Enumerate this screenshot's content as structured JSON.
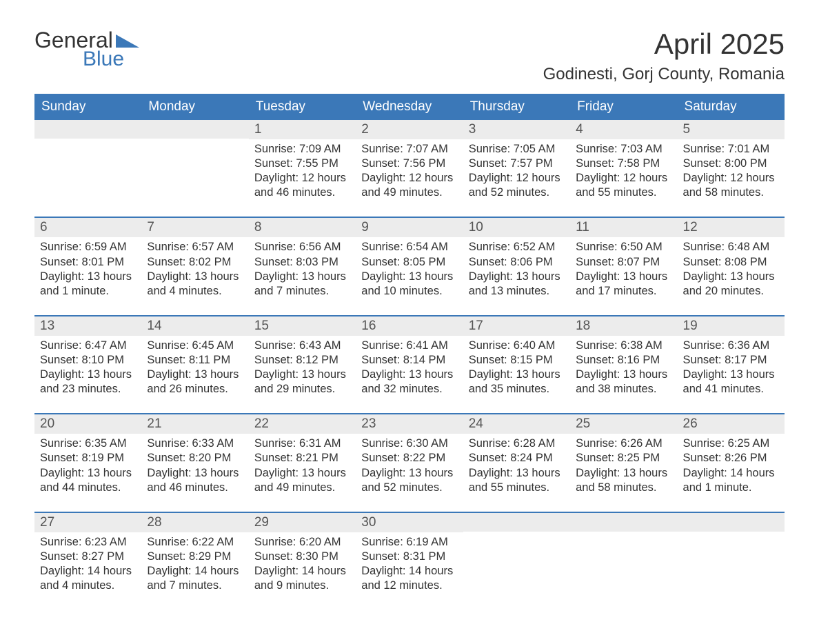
{
  "logo": {
    "text1": "General",
    "text2": "Blue",
    "tri_color": "#3b78b8"
  },
  "title": "April 2025",
  "location": "Godinesti, Gorj County, Romania",
  "colors": {
    "header_bg": "#3b78b8",
    "header_text": "#ffffff",
    "daynum_bg": "#ececec",
    "text": "#333333",
    "week_border": "#3b78b8",
    "page_bg": "#ffffff"
  },
  "day_headers": [
    "Sunday",
    "Monday",
    "Tuesday",
    "Wednesday",
    "Thursday",
    "Friday",
    "Saturday"
  ],
  "weeks": [
    [
      {
        "n": "",
        "sr": "",
        "ss": "",
        "dl": ""
      },
      {
        "n": "",
        "sr": "",
        "ss": "",
        "dl": ""
      },
      {
        "n": "1",
        "sr": "7:09 AM",
        "ss": "7:55 PM",
        "dl": "12 hours and 46 minutes."
      },
      {
        "n": "2",
        "sr": "7:07 AM",
        "ss": "7:56 PM",
        "dl": "12 hours and 49 minutes."
      },
      {
        "n": "3",
        "sr": "7:05 AM",
        "ss": "7:57 PM",
        "dl": "12 hours and 52 minutes."
      },
      {
        "n": "4",
        "sr": "7:03 AM",
        "ss": "7:58 PM",
        "dl": "12 hours and 55 minutes."
      },
      {
        "n": "5",
        "sr": "7:01 AM",
        "ss": "8:00 PM",
        "dl": "12 hours and 58 minutes."
      }
    ],
    [
      {
        "n": "6",
        "sr": "6:59 AM",
        "ss": "8:01 PM",
        "dl": "13 hours and 1 minute."
      },
      {
        "n": "7",
        "sr": "6:57 AM",
        "ss": "8:02 PM",
        "dl": "13 hours and 4 minutes."
      },
      {
        "n": "8",
        "sr": "6:56 AM",
        "ss": "8:03 PM",
        "dl": "13 hours and 7 minutes."
      },
      {
        "n": "9",
        "sr": "6:54 AM",
        "ss": "8:05 PM",
        "dl": "13 hours and 10 minutes."
      },
      {
        "n": "10",
        "sr": "6:52 AM",
        "ss": "8:06 PM",
        "dl": "13 hours and 13 minutes."
      },
      {
        "n": "11",
        "sr": "6:50 AM",
        "ss": "8:07 PM",
        "dl": "13 hours and 17 minutes."
      },
      {
        "n": "12",
        "sr": "6:48 AM",
        "ss": "8:08 PM",
        "dl": "13 hours and 20 minutes."
      }
    ],
    [
      {
        "n": "13",
        "sr": "6:47 AM",
        "ss": "8:10 PM",
        "dl": "13 hours and 23 minutes."
      },
      {
        "n": "14",
        "sr": "6:45 AM",
        "ss": "8:11 PM",
        "dl": "13 hours and 26 minutes."
      },
      {
        "n": "15",
        "sr": "6:43 AM",
        "ss": "8:12 PM",
        "dl": "13 hours and 29 minutes."
      },
      {
        "n": "16",
        "sr": "6:41 AM",
        "ss": "8:14 PM",
        "dl": "13 hours and 32 minutes."
      },
      {
        "n": "17",
        "sr": "6:40 AM",
        "ss": "8:15 PM",
        "dl": "13 hours and 35 minutes."
      },
      {
        "n": "18",
        "sr": "6:38 AM",
        "ss": "8:16 PM",
        "dl": "13 hours and 38 minutes."
      },
      {
        "n": "19",
        "sr": "6:36 AM",
        "ss": "8:17 PM",
        "dl": "13 hours and 41 minutes."
      }
    ],
    [
      {
        "n": "20",
        "sr": "6:35 AM",
        "ss": "8:19 PM",
        "dl": "13 hours and 44 minutes."
      },
      {
        "n": "21",
        "sr": "6:33 AM",
        "ss": "8:20 PM",
        "dl": "13 hours and 46 minutes."
      },
      {
        "n": "22",
        "sr": "6:31 AM",
        "ss": "8:21 PM",
        "dl": "13 hours and 49 minutes."
      },
      {
        "n": "23",
        "sr": "6:30 AM",
        "ss": "8:22 PM",
        "dl": "13 hours and 52 minutes."
      },
      {
        "n": "24",
        "sr": "6:28 AM",
        "ss": "8:24 PM",
        "dl": "13 hours and 55 minutes."
      },
      {
        "n": "25",
        "sr": "6:26 AM",
        "ss": "8:25 PM",
        "dl": "13 hours and 58 minutes."
      },
      {
        "n": "26",
        "sr": "6:25 AM",
        "ss": "8:26 PM",
        "dl": "14 hours and 1 minute."
      }
    ],
    [
      {
        "n": "27",
        "sr": "6:23 AM",
        "ss": "8:27 PM",
        "dl": "14 hours and 4 minutes."
      },
      {
        "n": "28",
        "sr": "6:22 AM",
        "ss": "8:29 PM",
        "dl": "14 hours and 7 minutes."
      },
      {
        "n": "29",
        "sr": "6:20 AM",
        "ss": "8:30 PM",
        "dl": "14 hours and 9 minutes."
      },
      {
        "n": "30",
        "sr": "6:19 AM",
        "ss": "8:31 PM",
        "dl": "14 hours and 12 minutes."
      },
      {
        "n": "",
        "sr": "",
        "ss": "",
        "dl": ""
      },
      {
        "n": "",
        "sr": "",
        "ss": "",
        "dl": ""
      },
      {
        "n": "",
        "sr": "",
        "ss": "",
        "dl": ""
      }
    ]
  ],
  "labels": {
    "sunrise": "Sunrise: ",
    "sunset": "Sunset: ",
    "daylight": "Daylight: "
  }
}
